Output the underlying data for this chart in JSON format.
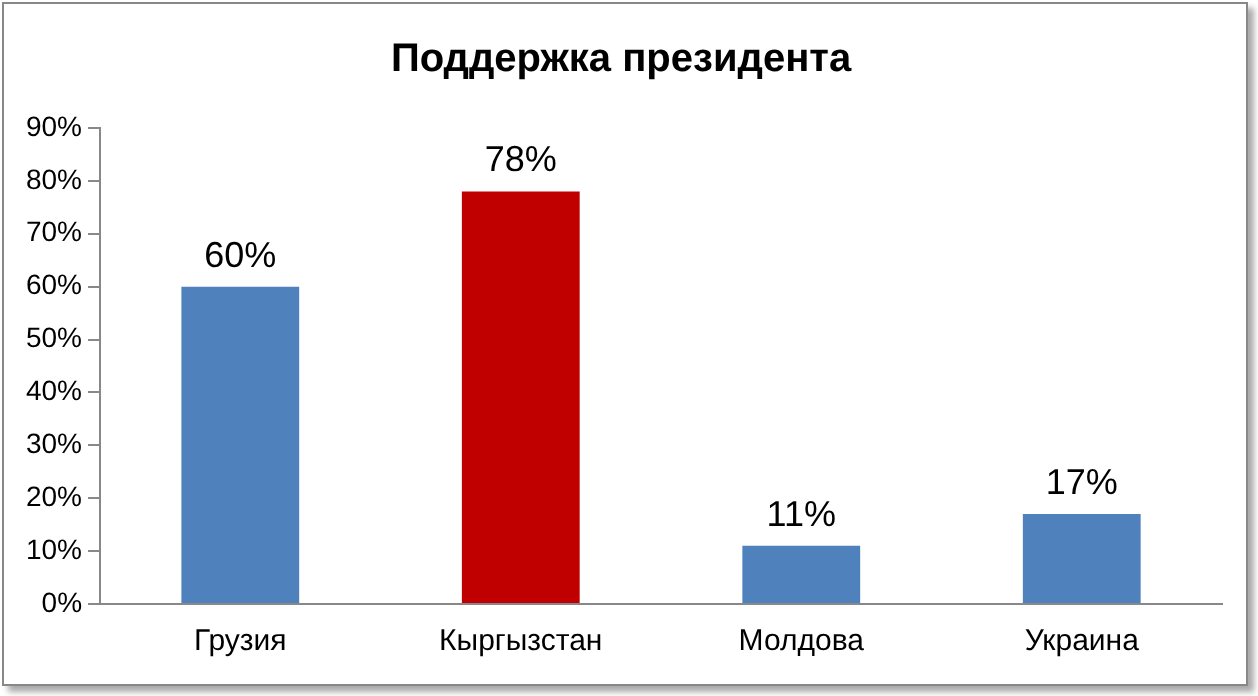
{
  "chart_data": {
    "type": "bar",
    "title": "Поддержка президента",
    "categories": [
      "Грузия",
      "Кыргызстан",
      "Молдова",
      "Украина"
    ],
    "values": [
      60,
      78,
      11,
      17
    ],
    "colors": [
      "#4f81bd",
      "#c00000",
      "#4f81bd",
      "#4f81bd"
    ],
    "value_labels": [
      "60%",
      "78%",
      "11%",
      "17%"
    ],
    "ylim": [
      0,
      90
    ],
    "yticks": [
      {
        "value": 0,
        "label": "0%"
      },
      {
        "value": 10,
        "label": "10%"
      },
      {
        "value": 20,
        "label": "20%"
      },
      {
        "value": 30,
        "label": "30%"
      },
      {
        "value": 40,
        "label": "40%"
      },
      {
        "value": 50,
        "label": "50%"
      },
      {
        "value": 60,
        "label": "60%"
      },
      {
        "value": 70,
        "label": "70%"
      },
      {
        "value": 80,
        "label": "80%"
      },
      {
        "value": 90,
        "label": "90%"
      }
    ],
    "grid": false,
    "legend": false
  }
}
